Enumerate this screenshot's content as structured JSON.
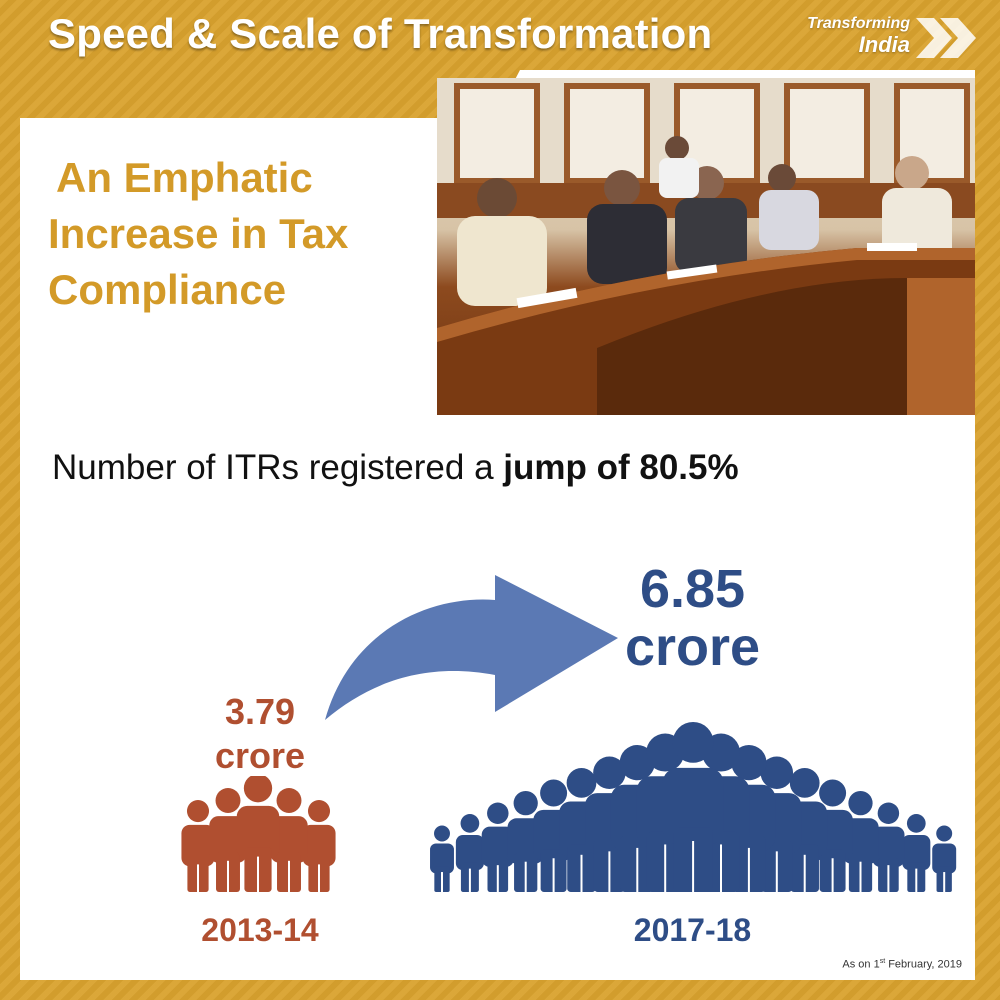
{
  "header": {
    "title": "Speed & Scale of Transformation"
  },
  "brand": {
    "line1": "Transforming",
    "line2": "India"
  },
  "headline": {
    "line1": "An Emphatic",
    "line2": "Increase in Tax",
    "line3": "Compliance"
  },
  "stat": {
    "prefix": "Number of ITRs registered a ",
    "emphasis": "jump of 80.5%"
  },
  "before": {
    "value": "3.79",
    "unit": "crore",
    "year": "2013-14"
  },
  "after": {
    "value": "6.85",
    "unit": "crore",
    "year": "2017-18"
  },
  "footnote": {
    "prefix": "As on 1",
    "sup": "st",
    "suffix": " February, 2019"
  },
  "colors": {
    "accent_gold": "#d9a22e",
    "before_color": "#b04f30",
    "after_color": "#2e4d86",
    "arrow_color": "#5b79b4"
  },
  "icons": {
    "crowd_before": "people-group-icon",
    "crowd_after": "people-group-icon",
    "arrow": "curved-arrow-icon",
    "brand": "chevron-arrows-icon"
  }
}
